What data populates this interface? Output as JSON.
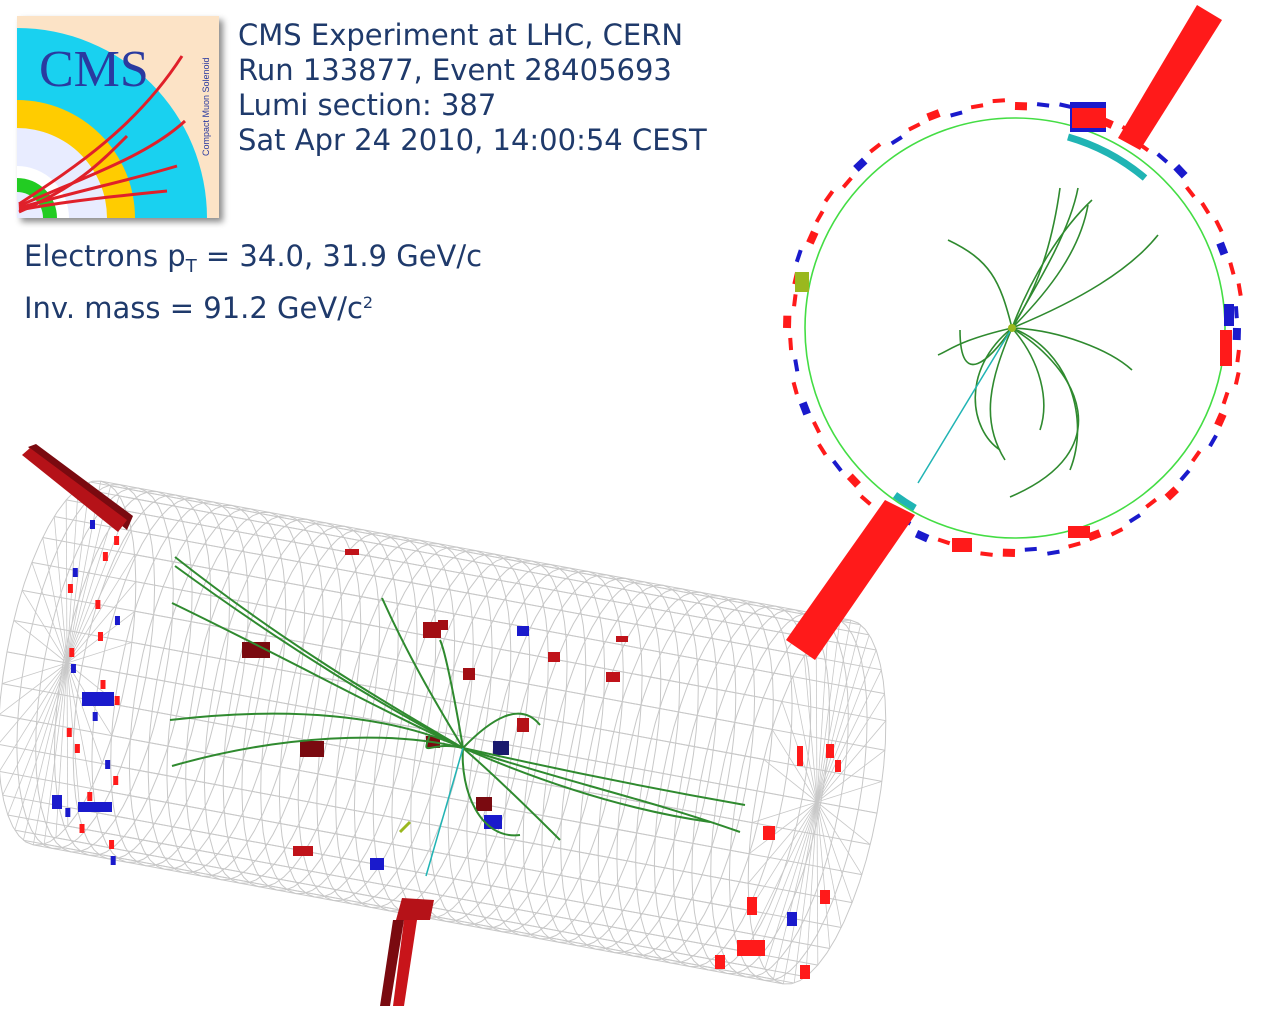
{
  "logo": {
    "text": "CMS",
    "subtitle": "Compact Muon Solenoid",
    "colors": {
      "peach": "#fce3c6",
      "cyan": "#19d1f0",
      "yellow": "#ffcc00",
      "light": "#e8ecff",
      "green": "#22cc22",
      "track": "#e0202a",
      "text": "#2a3aa0"
    }
  },
  "event_info": {
    "experiment": "CMS Experiment at LHC, CERN",
    "run_event": "Run 133877, Event 28405693",
    "lumi": "Lumi section: 387",
    "datetime": "Sat Apr 24 2010, 14:00:54 CEST"
  },
  "physics": {
    "electrons_label": "Electrons p",
    "pt_subscript": "T",
    "electrons_values": " = 34.0, 31.9 GeV/c",
    "mass_text": "Inv. mass  = 91.2 GeV/c",
    "mass_exponent": "2"
  },
  "colors": {
    "text": "#1f3a6b",
    "ecal_red": "#ff1a1a",
    "hcal_blue": "#1a1acc",
    "dark_red": "#7a0a10",
    "track_green": "#2f8a2f",
    "electron_cyan": "#20b4b4",
    "tracker_circle": "#44dd44",
    "mesh_grey": "#c8c8c8"
  }
}
